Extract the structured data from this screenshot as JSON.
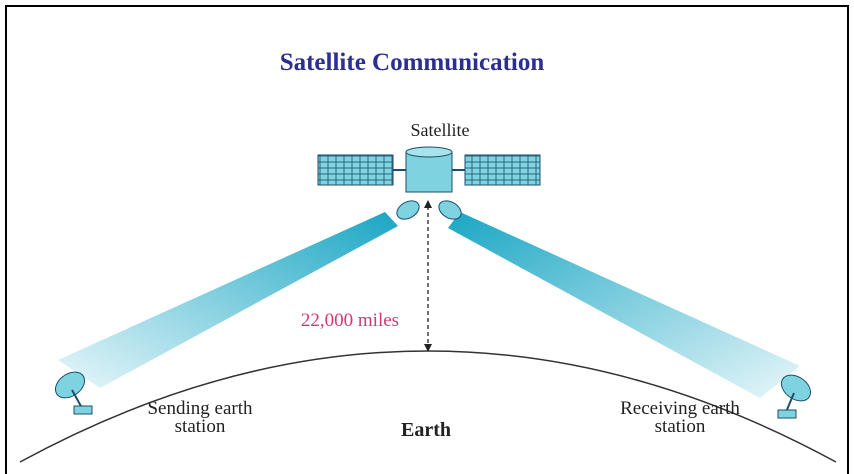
{
  "title": "Satellite Communication",
  "satellite": {
    "label": "Satellite"
  },
  "distance": {
    "label": "22,000 miles"
  },
  "earth": {
    "label": "Earth"
  },
  "stations": [
    {
      "label": [
        "Sending earth",
        "station"
      ]
    },
    {
      "label": [
        "Receiving earth",
        "station"
      ]
    }
  ]
}
